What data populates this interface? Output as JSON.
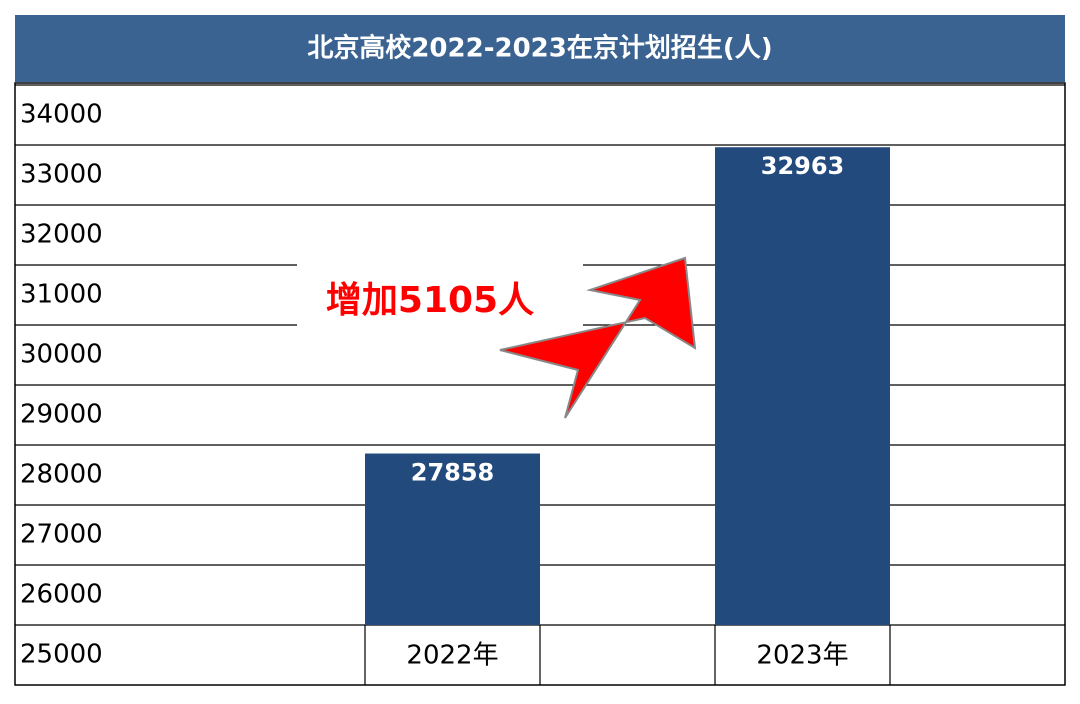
{
  "chart_data": {
    "type": "bar",
    "title": "北京高校2022-2023在京计划招生(人)",
    "categories": [
      "2022年",
      "2023年"
    ],
    "values": [
      27858,
      32963
    ],
    "color": "#234a7c",
    "ylim": [
      25000,
      34000
    ],
    "yticks": [
      25000,
      26000,
      27000,
      28000,
      29000,
      30000,
      31000,
      32000,
      33000,
      34000
    ],
    "grid": true,
    "annotation": "增加5105人",
    "annotation_color": "#ff0000"
  }
}
